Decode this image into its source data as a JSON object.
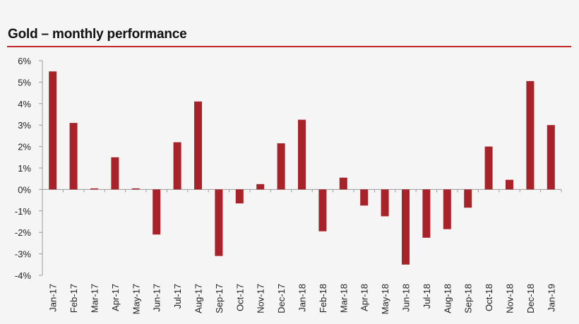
{
  "chart_data": {
    "type": "bar",
    "title": "Gold – monthly performance",
    "xlabel": "",
    "ylabel": "",
    "ylim": [
      -4,
      6
    ],
    "yticks": [
      6,
      5,
      4,
      3,
      2,
      1,
      0,
      -1,
      -2,
      -3,
      -4
    ],
    "ytick_labels": [
      "6%",
      "5%",
      "4%",
      "3%",
      "2%",
      "1%",
      "0%",
      "-1%",
      "-2%",
      "-3%",
      "-4%"
    ],
    "categories": [
      "Jan-17",
      "Feb-17",
      "Mar-17",
      "Apr-17",
      "May-17",
      "Jun-17",
      "Jul-17",
      "Aug-17",
      "Sep-17",
      "Oct-17",
      "Nov-17",
      "Dec-17",
      "Jan-18",
      "Feb-18",
      "Mar-18",
      "Apr-18",
      "May-18",
      "Jun-18",
      "Jul-18",
      "Aug-18",
      "Sep-18",
      "Oct-18",
      "Nov-18",
      "Dec-18",
      "Jan-19"
    ],
    "values": [
      5.5,
      3.1,
      0.05,
      1.5,
      0.05,
      -2.1,
      2.2,
      4.1,
      -3.1,
      -0.65,
      0.25,
      2.15,
      3.25,
      -1.95,
      0.55,
      -0.75,
      -1.25,
      -3.5,
      -2.25,
      -1.85,
      -0.85,
      2.0,
      0.45,
      5.05,
      3.0
    ],
    "grid": false,
    "colors": {
      "bar": "#a72329",
      "rule": "#c0282d",
      "axis": "#9a9a9a"
    }
  }
}
